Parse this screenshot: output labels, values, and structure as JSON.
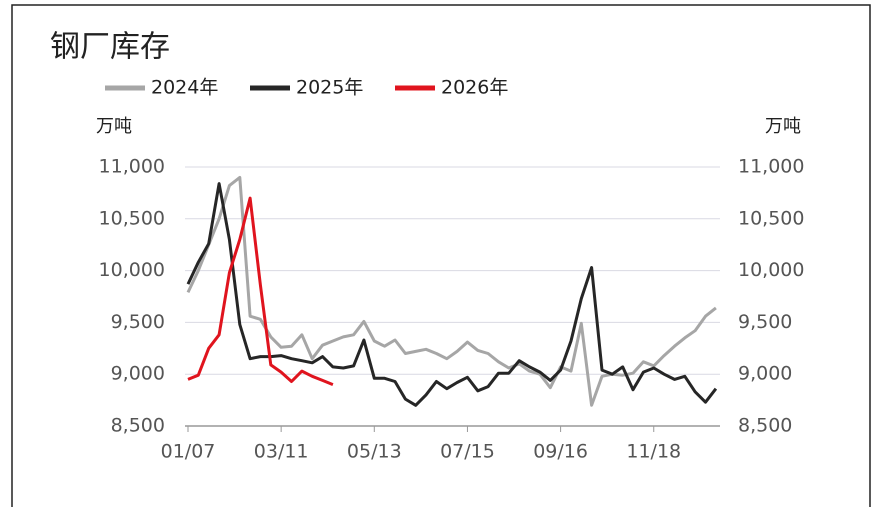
{
  "chart_data": {
    "type": "line",
    "title": "钢厂库存",
    "y_label": "万吨",
    "y2_label": "万吨",
    "categories": [
      "01/07",
      null,
      null,
      null,
      null,
      null,
      null,
      null,
      null,
      "03/11",
      null,
      null,
      null,
      null,
      null,
      null,
      null,
      null,
      "05/13",
      null,
      null,
      null,
      null,
      null,
      null,
      null,
      null,
      "07/15",
      null,
      null,
      null,
      null,
      null,
      null,
      null,
      null,
      "09/16",
      null,
      null,
      null,
      null,
      null,
      null,
      null,
      null,
      "11/18",
      null,
      null,
      null,
      null,
      null,
      null
    ],
    "series": [
      {
        "name": "2024年",
        "color": "#a6a6a6",
        "values": [
          9790,
          10000,
          10250,
          10500,
          10820,
          10900,
          9560,
          9530,
          9360,
          9260,
          9270,
          9380,
          9150,
          9280,
          9320,
          9360,
          9380,
          9510,
          9320,
          9270,
          9330,
          9200,
          9220,
          9240,
          9200,
          9150,
          9220,
          9310,
          9230,
          9200,
          9120,
          9060,
          9100,
          9030,
          9000,
          8870,
          9070,
          9030,
          9490,
          8700,
          8980,
          9000,
          8990,
          9010,
          9120,
          9080,
          9180,
          9270,
          9350,
          9420,
          9560,
          9640
        ]
      },
      {
        "name": "2025年",
        "color": "#262626",
        "values": [
          9870,
          10080,
          10260,
          10840,
          10300,
          9480,
          9150,
          9170,
          9170,
          9180,
          9150,
          9130,
          9110,
          9170,
          9070,
          9060,
          9080,
          9330,
          8960,
          8960,
          8930,
          8760,
          8700,
          8800,
          8930,
          8860,
          8920,
          8970,
          8840,
          8880,
          9010,
          9010,
          9130,
          9070,
          9020,
          8940,
          9040,
          9320,
          9730,
          10030,
          9040,
          9000,
          9070,
          8850,
          9020,
          9060,
          9000,
          8950,
          8980,
          8830,
          8730,
          8860
        ]
      },
      {
        "name": "2026年",
        "color": "#e0141e",
        "values": [
          8950,
          8990,
          9250,
          9380,
          9980,
          10300,
          10700,
          9860,
          9090,
          9020,
          8930,
          9030,
          8980,
          8940,
          8900,
          null,
          null,
          null,
          null,
          null,
          null,
          null,
          null,
          null,
          null,
          null,
          null,
          null,
          null,
          null,
          null,
          null,
          null,
          null,
          null,
          null,
          null,
          null,
          null,
          null,
          null,
          null,
          null,
          null,
          null,
          null,
          null,
          null,
          null,
          null,
          null,
          null
        ]
      }
    ],
    "ylim": [
      8500,
      11000
    ],
    "yticks": [
      {
        "value": 8500,
        "label": "8,500"
      },
      {
        "value": 9000,
        "label": "9,000"
      },
      {
        "value": 9500,
        "label": "9,500"
      },
      {
        "value": 10000,
        "label": "10,000"
      },
      {
        "value": 10500,
        "label": "10,500"
      },
      {
        "value": 11000,
        "label": "11,000"
      }
    ],
    "y2lim": [
      8500,
      11000
    ],
    "y2ticks": [
      {
        "value": 8500,
        "label": "8,500"
      },
      {
        "value": 9000,
        "label": "9,000"
      },
      {
        "value": 9500,
        "label": "9,500"
      },
      {
        "value": 10000,
        "label": "10,000"
      },
      {
        "value": 10500,
        "label": "10,500"
      },
      {
        "value": 11000,
        "label": "11,000"
      }
    ],
    "grid": true
  }
}
